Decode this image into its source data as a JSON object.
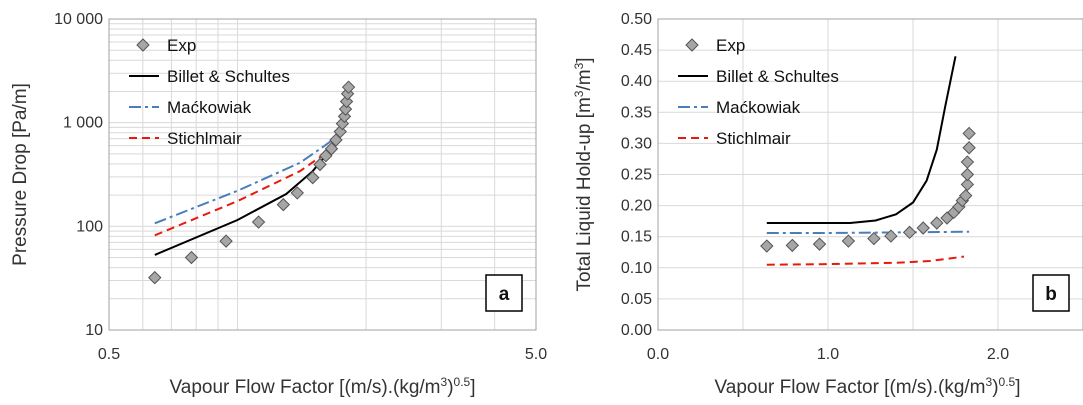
{
  "chart_data": [
    {
      "type": "scatter",
      "panel_label": "a",
      "xlabel_main": "Vapour Flow Factor [(m/s).(kg/m",
      "xlabel_sup1": "3",
      "xlabel_mid": ")",
      "xlabel_sup2": "0.5",
      "xlabel_end": "]",
      "ylabel": "Pressure Drop [Pa/m]",
      "x_scale": "log",
      "y_scale": "log",
      "xlim": [
        0.5,
        5.0
      ],
      "ylim": [
        10,
        10000
      ],
      "x_ticks": [
        0.5,
        5.0
      ],
      "x_tick_labels": [
        "0.5",
        "5.0"
      ],
      "y_ticks": [
        10,
        100,
        1000,
        10000
      ],
      "y_tick_labels": [
        "10",
        "100",
        "1 000",
        "10 000"
      ],
      "grid": true,
      "legend_position": "top-left",
      "series": [
        {
          "name": "Exp",
          "kind": "marker",
          "color": "#a6a6a6",
          "x": [
            0.64,
            0.78,
            0.94,
            1.12,
            1.28,
            1.38,
            1.5,
            1.56,
            1.61,
            1.66,
            1.7,
            1.74,
            1.76,
            1.78,
            1.79,
            1.8,
            1.81,
            1.82
          ],
          "y": [
            32,
            50,
            72,
            110,
            162,
            210,
            295,
            395,
            480,
            560,
            680,
            820,
            980,
            1150,
            1350,
            1600,
            1900,
            2200
          ]
        },
        {
          "name": "Billet & Schultes",
          "kind": "line",
          "dash": "solid",
          "color": "#000000",
          "x": [
            0.64,
            1.0,
            1.3,
            1.5,
            1.6,
            1.7,
            1.76
          ],
          "y": [
            53,
            115,
            205,
            340,
            470,
            650,
            800
          ]
        },
        {
          "name": "Maćkowiak",
          "kind": "line",
          "dash": "dashdot",
          "color": "#4a7ebb",
          "x": [
            0.64,
            1.0,
            1.4,
            1.6,
            1.7
          ],
          "y": [
            107,
            220,
            410,
            600,
            720
          ]
        },
        {
          "name": "Stichlmair",
          "kind": "line",
          "dash": "dash",
          "color": "#e8190c",
          "x": [
            0.64,
            1.0,
            1.4,
            1.6,
            1.68
          ],
          "y": [
            82,
            175,
            340,
            500,
            580
          ]
        }
      ]
    },
    {
      "type": "scatter",
      "panel_label": "b",
      "xlabel_main": "Vapour Flow Factor [(m/s).(kg/m",
      "xlabel_sup1": "3",
      "xlabel_mid": ")",
      "xlabel_sup2": "0.5",
      "xlabel_end": "]",
      "ylabel_main": "Total Liquid Hold-up [m",
      "ylabel_sup1": "3",
      "ylabel_mid": "/m",
      "ylabel_sup2": "3",
      "ylabel_end": "]",
      "x_scale": "linear",
      "y_scale": "linear",
      "xlim": [
        0.0,
        2.5
      ],
      "ylim": [
        0.0,
        0.5
      ],
      "x_ticks": [
        0.0,
        1.0,
        2.0
      ],
      "x_tick_labels": [
        "0.0",
        "1.0",
        "2.0"
      ],
      "x_grid": [
        0.0,
        0.5,
        1.0,
        1.5,
        2.0,
        2.5
      ],
      "y_ticks": [
        0.0,
        0.05,
        0.1,
        0.15,
        0.2,
        0.25,
        0.3,
        0.35,
        0.4,
        0.45,
        0.5
      ],
      "y_tick_labels": [
        "0.00",
        "0.05",
        "0.10",
        "0.15",
        "0.20",
        "0.25",
        "0.30",
        "0.35",
        "0.40",
        "0.45",
        "0.50"
      ],
      "grid": true,
      "legend_position": "top-left",
      "series": [
        {
          "name": "Exp",
          "kind": "marker",
          "color": "#a6a6a6",
          "x": [
            0.64,
            0.79,
            0.95,
            1.12,
            1.27,
            1.37,
            1.48,
            1.56,
            1.64,
            1.7,
            1.74,
            1.77,
            1.79,
            1.81,
            1.82,
            1.82,
            1.82,
            1.83,
            1.83
          ],
          "y": [
            0.135,
            0.136,
            0.138,
            0.143,
            0.147,
            0.151,
            0.157,
            0.164,
            0.172,
            0.18,
            0.189,
            0.198,
            0.208,
            0.216,
            0.234,
            0.25,
            0.27,
            0.293,
            0.316
          ]
        },
        {
          "name": "Billet & Schultes",
          "kind": "line",
          "dash": "solid",
          "color": "#000000",
          "x": [
            0.64,
            1.0,
            1.13,
            1.28,
            1.4,
            1.5,
            1.58,
            1.64,
            1.69,
            1.72,
            1.75
          ],
          "y": [
            0.172,
            0.172,
            0.172,
            0.176,
            0.186,
            0.205,
            0.24,
            0.29,
            0.36,
            0.4,
            0.44
          ]
        },
        {
          "name": "Maćkowiak",
          "kind": "line",
          "dash": "dashdot",
          "color": "#4a7ebb",
          "x": [
            0.64,
            1.0,
            1.5,
            1.83
          ],
          "y": [
            0.156,
            0.156,
            0.157,
            0.158
          ]
        },
        {
          "name": "Stichlmair",
          "kind": "line",
          "dash": "dash",
          "color": "#e8190c",
          "x": [
            0.64,
            1.0,
            1.4,
            1.6,
            1.8
          ],
          "y": [
            0.105,
            0.106,
            0.108,
            0.111,
            0.118
          ]
        }
      ]
    }
  ]
}
